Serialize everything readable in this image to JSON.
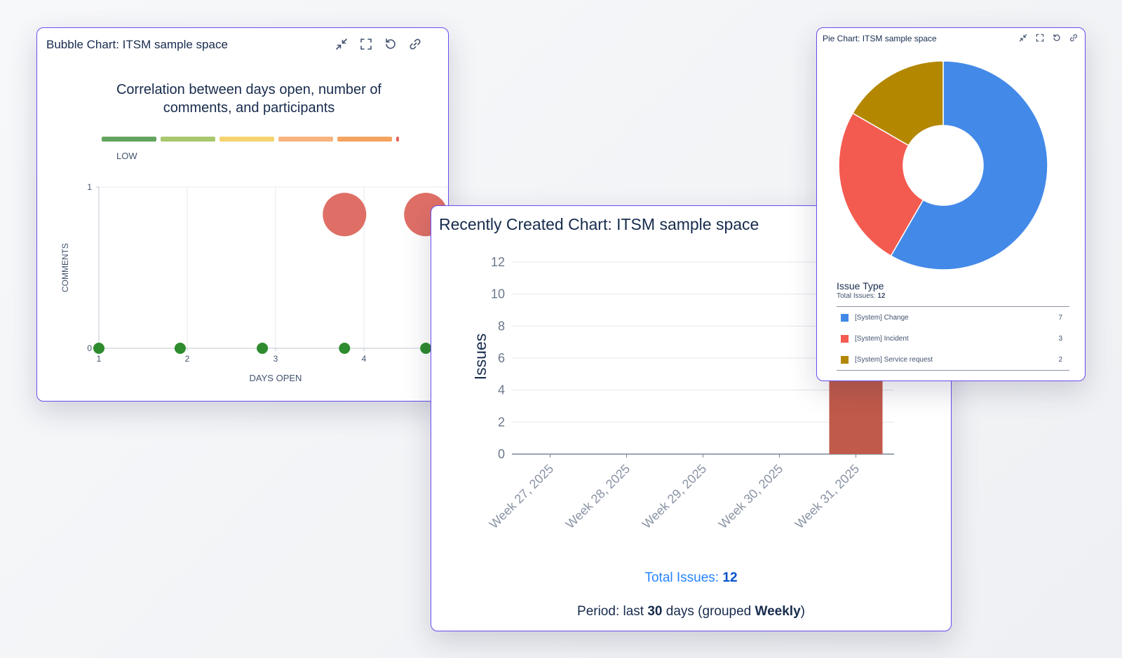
{
  "bubble_card": {
    "title": "Bubble Chart: ITSM sample space",
    "tools": [
      "collapse-icon",
      "expand-icon",
      "refresh-icon",
      "link-icon"
    ]
  },
  "bar_card": {
    "title": "Recently Created Chart: ITSM sample space",
    "total_label": "Total Issues:",
    "total_value": "12",
    "period_prefix": "Period: last",
    "period_days": "30",
    "period_middle": "days (grouped",
    "period_group": "Weekly",
    "period_suffix": ")"
  },
  "pie_card": {
    "title": "Pie Chart: ITSM sample space",
    "tools": [
      "collapse-icon",
      "expand-icon",
      "refresh-icon",
      "link-icon"
    ],
    "legend_title": "Issue Type",
    "legend_total_label": "Total Issues:",
    "legend_total_value": "12"
  },
  "chart_data": [
    {
      "type": "scatter",
      "title": "Correlation between days open, number of comments, and participants",
      "xlabel": "DAYS OPEN",
      "ylabel": "COMMENTS",
      "xlim": [
        1,
        5
      ],
      "ylim": [
        0,
        1
      ],
      "xticks": [
        1,
        2,
        3,
        4
      ],
      "yticks": [
        0,
        1
      ],
      "grid": true,
      "color_scale": {
        "label": "LOW",
        "colors": [
          "#63a55e",
          "#a9c76d",
          "#f5d36f",
          "#f6b47e",
          "#f4a460",
          "#e5635a"
        ]
      },
      "series": [
        {
          "points": [
            {
              "x": 1.0,
              "y": 0,
              "size": 1,
              "color": "#2e8b2e"
            },
            {
              "x": 1.92,
              "y": 0,
              "size": 1,
              "color": "#2e8b2e"
            },
            {
              "x": 2.85,
              "y": 0,
              "size": 1,
              "color": "#2e8b2e"
            },
            {
              "x": 3.78,
              "y": 0,
              "size": 1,
              "color": "#2e8b2e"
            },
            {
              "x": 4.7,
              "y": 0,
              "size": 1,
              "color": "#2e8b2e"
            },
            {
              "x": 3.78,
              "y": 0.83,
              "size": 5,
              "color": "#df6f66"
            },
            {
              "x": 4.7,
              "y": 0.83,
              "size": 5,
              "color": "#df6f66"
            }
          ]
        }
      ]
    },
    {
      "type": "bar",
      "title": "",
      "ylabel": "Issues",
      "xlabel": "",
      "categories": [
        "Week 27, 2025",
        "Week 28, 2025",
        "Week 29, 2025",
        "Week 30, 2025",
        "Week 31, 2025"
      ],
      "values": [
        0,
        0,
        0,
        0,
        12
      ],
      "ylim": [
        0,
        12
      ],
      "yticks": [
        0,
        2,
        4,
        6,
        8,
        10,
        12
      ],
      "grid": true,
      "bar_color": "#c05a4a"
    },
    {
      "type": "pie",
      "donut": true,
      "title": "Issue Type",
      "slices": [
        {
          "label": "[System] Change",
          "value": 7,
          "color": "#4389e8"
        },
        {
          "label": "[System] Incident",
          "value": 3,
          "color": "#f45b50"
        },
        {
          "label": "[System] Service request",
          "value": 2,
          "color": "#b38700"
        }
      ]
    }
  ]
}
